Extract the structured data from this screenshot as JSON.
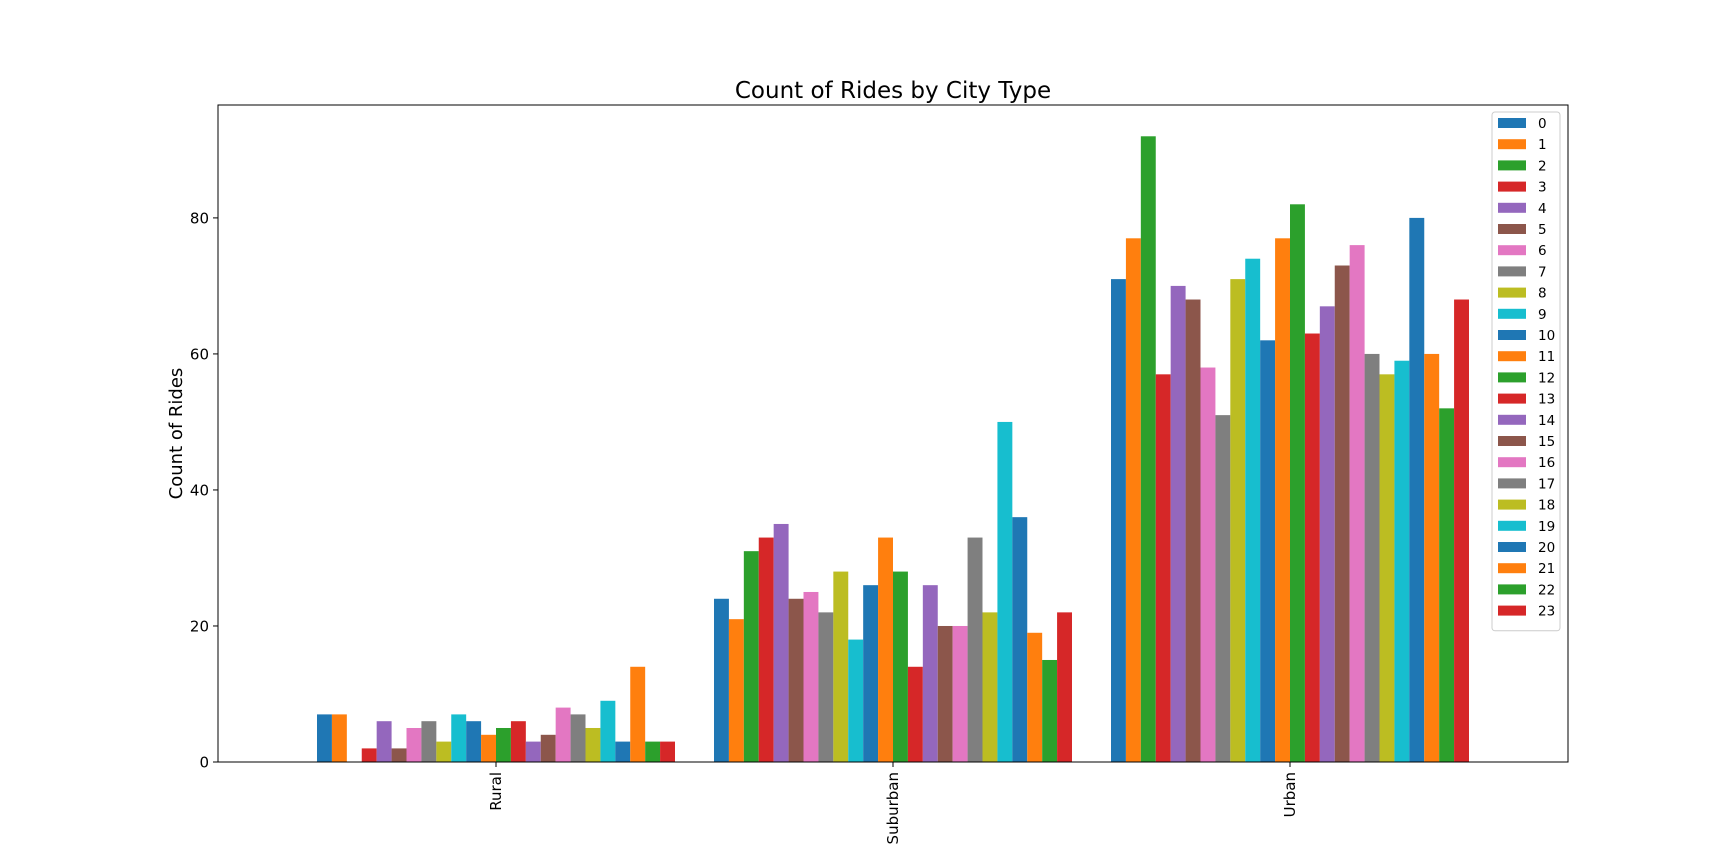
{
  "chart_data": {
    "type": "bar",
    "title": "Count of Rides by City Type",
    "xlabel": "",
    "ylabel": "Count of Rides",
    "ylim": [
      0,
      96.6
    ],
    "yticks": [
      0,
      20,
      40,
      60,
      80
    ],
    "grid": false,
    "legend_position": "top-right",
    "categories": [
      "Rural",
      "Suburban",
      "Urban"
    ],
    "series": [
      {
        "name": "0",
        "color": "#1f77b4",
        "values": [
          7,
          24,
          71
        ]
      },
      {
        "name": "1",
        "color": "#ff7f0e",
        "values": [
          7,
          21,
          77
        ]
      },
      {
        "name": "2",
        "color": "#2ca02c",
        "values": [
          0,
          31,
          92
        ]
      },
      {
        "name": "3",
        "color": "#d62728",
        "values": [
          2,
          33,
          57
        ]
      },
      {
        "name": "4",
        "color": "#9467bd",
        "values": [
          6,
          35,
          70
        ]
      },
      {
        "name": "5",
        "color": "#8c564b",
        "values": [
          2,
          24,
          68
        ]
      },
      {
        "name": "6",
        "color": "#e377c2",
        "values": [
          5,
          25,
          58
        ]
      },
      {
        "name": "7",
        "color": "#7f7f7f",
        "values": [
          6,
          22,
          51
        ]
      },
      {
        "name": "8",
        "color": "#bcbd22",
        "values": [
          3,
          28,
          71
        ]
      },
      {
        "name": "9",
        "color": "#17becf",
        "values": [
          7,
          18,
          74
        ]
      },
      {
        "name": "10",
        "color": "#1f77b4",
        "values": [
          6,
          26,
          62
        ]
      },
      {
        "name": "11",
        "color": "#ff7f0e",
        "values": [
          4,
          33,
          77
        ]
      },
      {
        "name": "12",
        "color": "#2ca02c",
        "values": [
          5,
          28,
          82
        ]
      },
      {
        "name": "13",
        "color": "#d62728",
        "values": [
          6,
          14,
          63
        ]
      },
      {
        "name": "14",
        "color": "#9467bd",
        "values": [
          3,
          26,
          67
        ]
      },
      {
        "name": "15",
        "color": "#8c564b",
        "values": [
          4,
          20,
          73
        ]
      },
      {
        "name": "16",
        "color": "#e377c2",
        "values": [
          8,
          20,
          76
        ]
      },
      {
        "name": "17",
        "color": "#7f7f7f",
        "values": [
          7,
          33,
          60
        ]
      },
      {
        "name": "18",
        "color": "#bcbd22",
        "values": [
          5,
          22,
          57
        ]
      },
      {
        "name": "19",
        "color": "#17becf",
        "values": [
          9,
          50,
          59
        ]
      },
      {
        "name": "20",
        "color": "#1f77b4",
        "values": [
          3,
          36,
          80
        ]
      },
      {
        "name": "21",
        "color": "#ff7f0e",
        "values": [
          14,
          19,
          60
        ]
      },
      {
        "name": "22",
        "color": "#2ca02c",
        "values": [
          3,
          15,
          52
        ]
      },
      {
        "name": "23",
        "color": "#d62728",
        "values": [
          3,
          22,
          68
        ]
      }
    ]
  }
}
